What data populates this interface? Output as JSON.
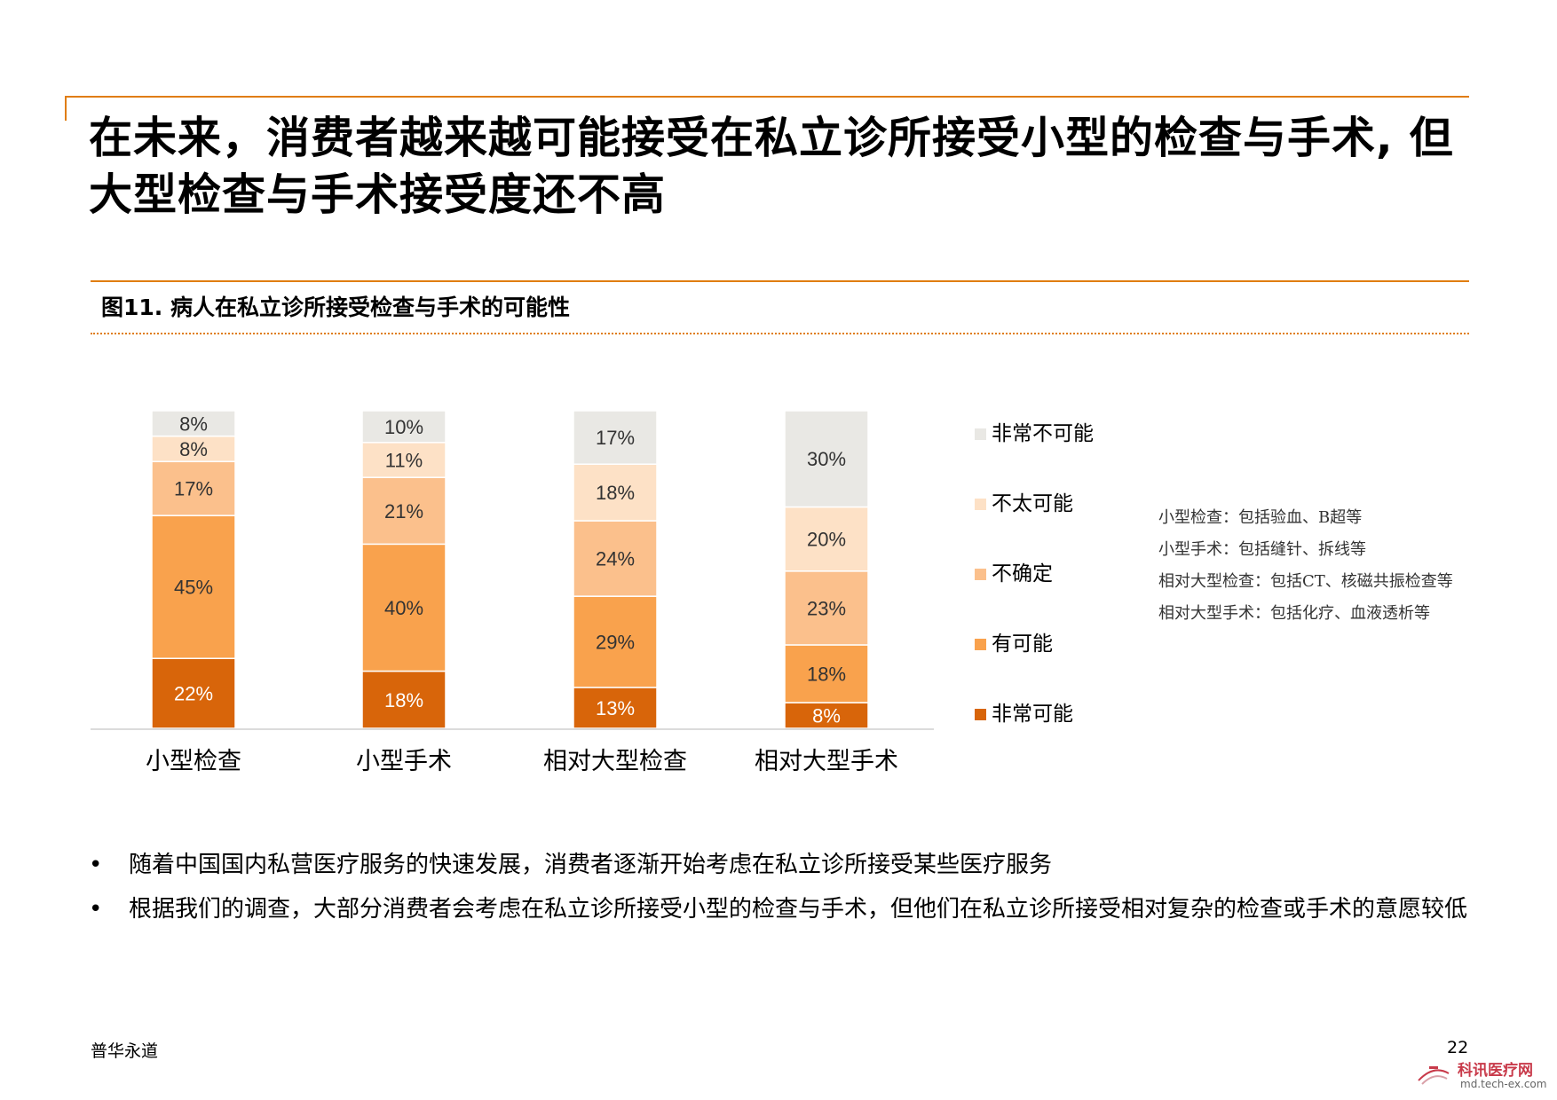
{
  "page_title": "在未来，消费者越来越可能接受在私立诊所接受小型的检查与手术, 但大型检查与手术接受度还不高",
  "figure_title": "图11. 病人在私立诊所接受检查与手术的可能性",
  "chart_data": {
    "type": "bar",
    "stacked": true,
    "percent": true,
    "categories": [
      "小型检查",
      "小型手术",
      "相对大型检查",
      "相对大型手术"
    ],
    "series": [
      {
        "name": "非常可能",
        "color": "#d8650a",
        "values": [
          22,
          18,
          13,
          8
        ],
        "labels": [
          "22%",
          "18%",
          "13%",
          "8%"
        ]
      },
      {
        "name": "有可能",
        "color": "#f9a24d",
        "values": [
          45,
          40,
          29,
          18
        ],
        "labels": [
          "45%",
          "40%",
          "29%",
          "18%"
        ]
      },
      {
        "name": "不确定",
        "color": "#fbc08c",
        "values": [
          17,
          21,
          24,
          23
        ],
        "labels": [
          "17%",
          "21%",
          "24%",
          "23%"
        ]
      },
      {
        "name": "不太可能",
        "color": "#fde1c6",
        "values": [
          8,
          11,
          18,
          20
        ],
        "labels": [
          "8%",
          "11%",
          "18%",
          "20%"
        ]
      },
      {
        "name": "非常不可能",
        "color": "#e9e8e4",
        "values": [
          8,
          10,
          17,
          30
        ],
        "labels": [
          "8%",
          "10%",
          "17%",
          "30%"
        ]
      }
    ],
    "legend_order": [
      "非常不可能",
      "不太可能",
      "不确定",
      "有可能",
      "非常可能"
    ],
    "legend_position": "right",
    "grid": false
  },
  "notes": [
    "小型检查：包括验血、B超等",
    "小型手术：包括缝针、拆线等",
    "相对大型检查：包括CT、核磁共振检查等",
    "相对大型手术：包括化疗、血液透析等"
  ],
  "bullets": [
    "随着中国国内私营医疗服务的快速发展，消费者逐渐开始考虑在私立诊所接受某些医疗服务",
    "根据我们的调查，大部分消费者会考虑在私立诊所接受小型的检查与手术，但他们在私立诊所接受相对复杂的检查或手术的意愿较低"
  ],
  "footer": {
    "brand": "普华永道",
    "page_number": "22",
    "watermark_name": "科讯医疗网",
    "watermark_url": "md.tech-ex.com"
  }
}
